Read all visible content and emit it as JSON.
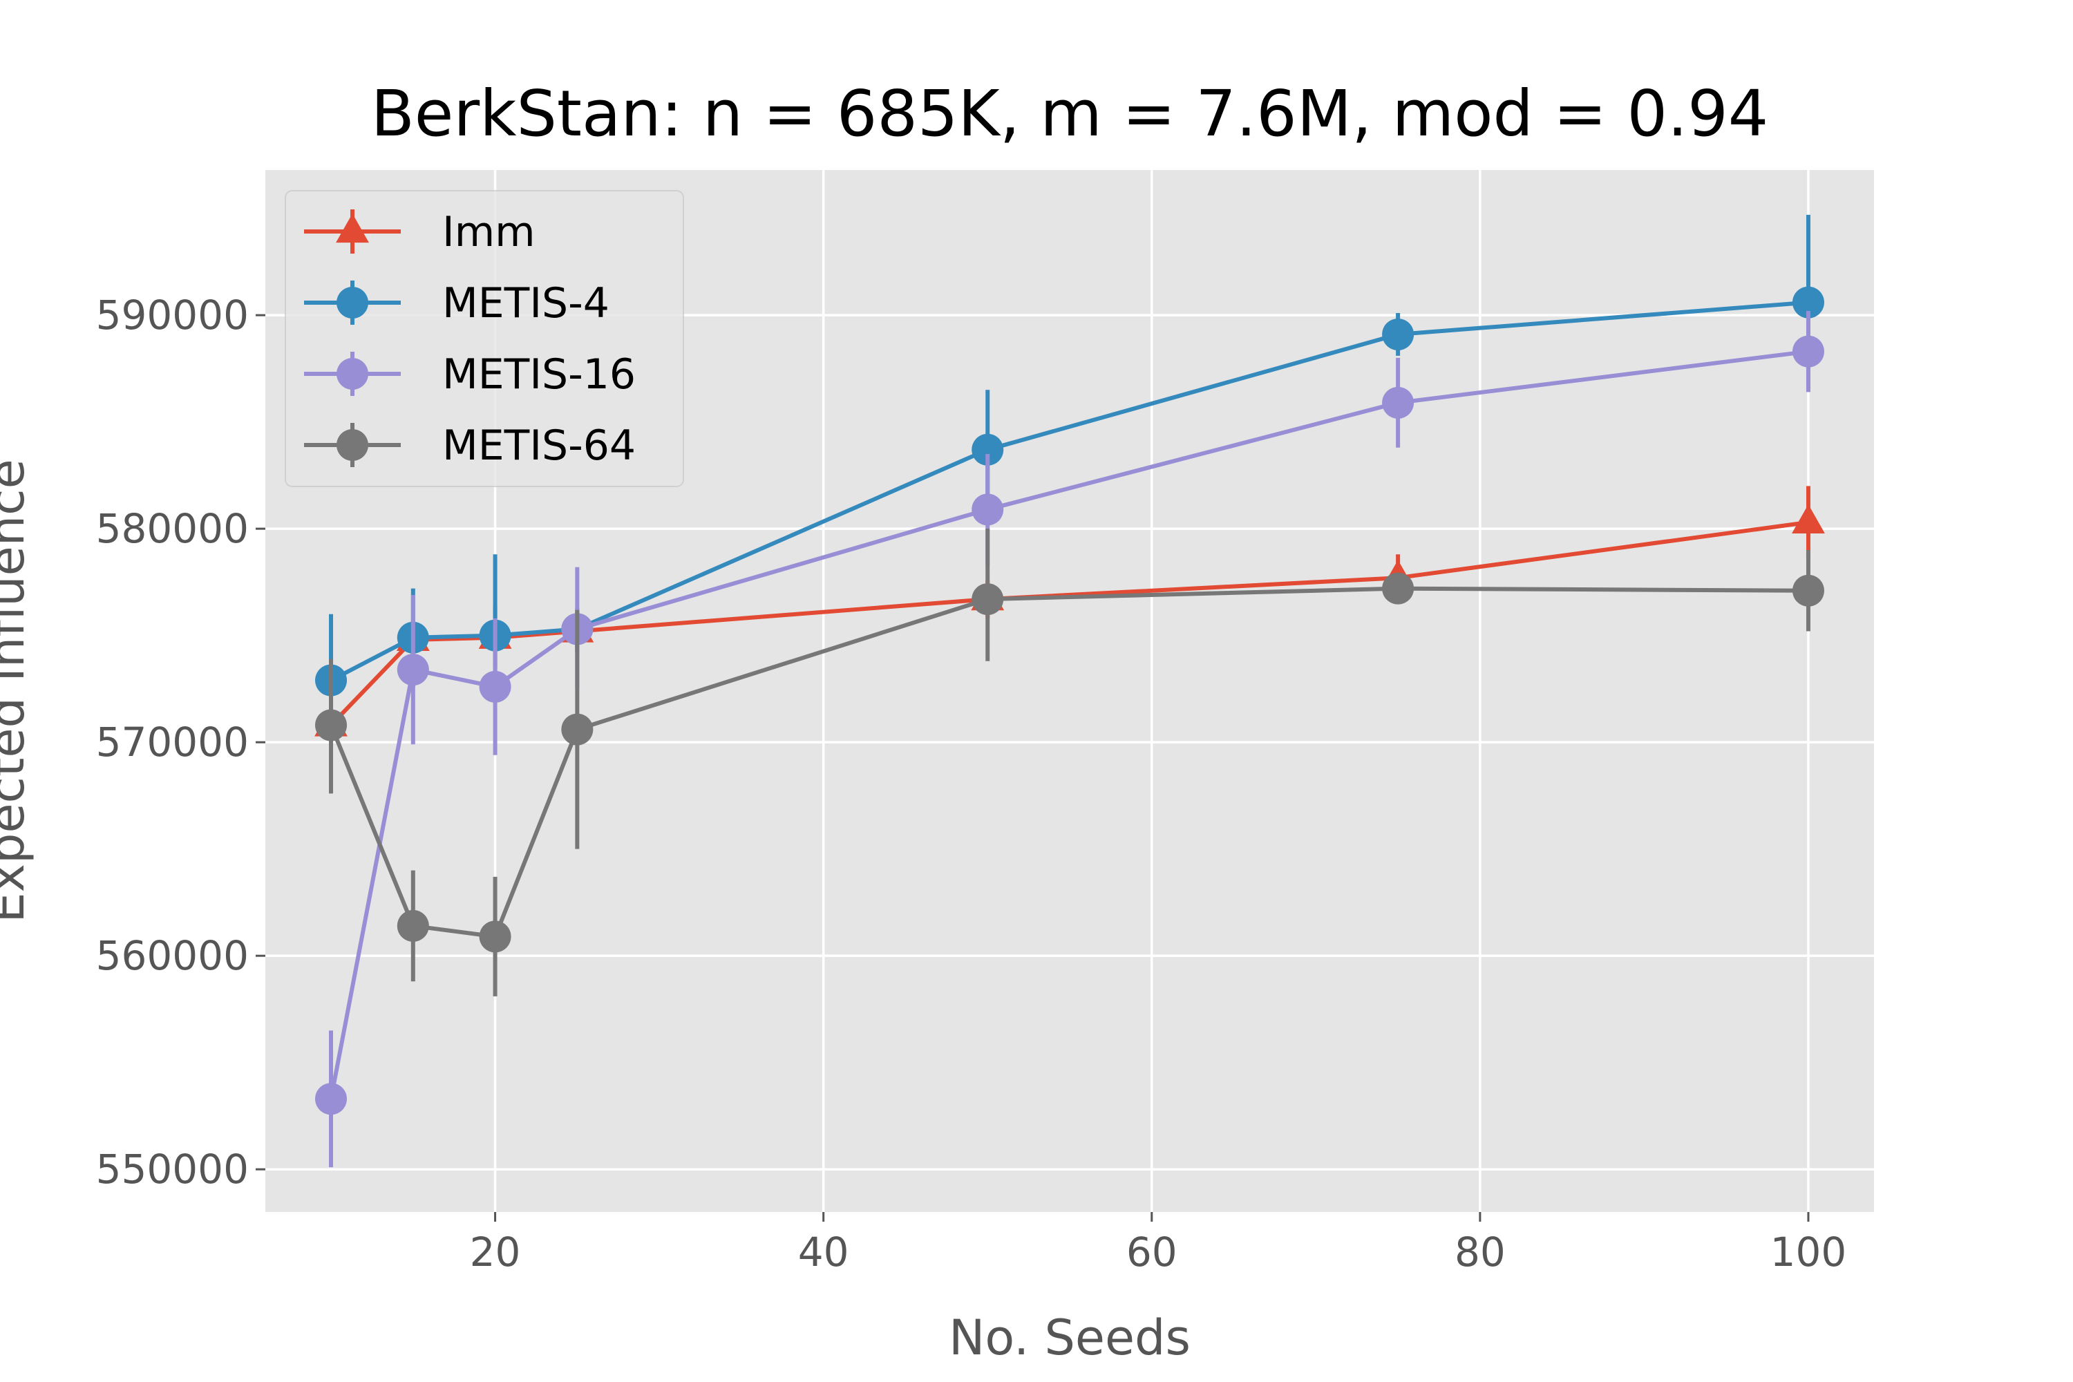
{
  "chart_data": {
    "type": "line",
    "title": "BerkStan: n = 685K, m = 7.6M, mod = 0.94",
    "xlabel": "No. Seeds",
    "ylabel": "Expected Influence",
    "xlim": [
      6,
      104
    ],
    "ylim": [
      548000,
      596800
    ],
    "xticks": [
      20,
      40,
      60,
      80,
      100
    ],
    "xtick_labels": [
      "20",
      "40",
      "60",
      "80",
      "100"
    ],
    "yticks": [
      550000,
      560000,
      570000,
      580000,
      590000
    ],
    "ytick_labels": [
      "550000",
      "560000",
      "570000",
      "580000",
      "590000"
    ],
    "grid": true,
    "legend_position": "upper-left",
    "x": [
      10,
      15,
      20,
      25,
      50,
      75,
      100
    ],
    "series": [
      {
        "name": "Imm",
        "color": "#E24A33",
        "marker": "triangle",
        "values": [
          570800,
          574800,
          574900,
          575200,
          576700,
          577700,
          580300
        ],
        "err_low": [
          570000,
          574000,
          573500,
          574300,
          575800,
          576800,
          578600
        ],
        "err_high": [
          571600,
          575500,
          576400,
          576200,
          577600,
          578800,
          582000
        ]
      },
      {
        "name": "METIS-4",
        "color": "#348ABD",
        "marker": "circle",
        "values": [
          572900,
          574900,
          575000,
          575300,
          583700,
          589100,
          590600
        ],
        "err_low": [
          570200,
          572600,
          572500,
          574200,
          580900,
          588100,
          586500
        ],
        "err_high": [
          576000,
          577200,
          578800,
          576300,
          586500,
          590100,
          594700
        ]
      },
      {
        "name": "METIS-16",
        "color": "#988ED5",
        "marker": "circle",
        "values": [
          553300,
          573400,
          572600,
          575300,
          580900,
          585900,
          588300
        ],
        "err_low": [
          550100,
          569900,
          569400,
          572500,
          578300,
          583800,
          586400
        ],
        "err_high": [
          556500,
          576900,
          575800,
          578200,
          583500,
          588000,
          590200
        ]
      },
      {
        "name": "METIS-64",
        "color": "#777777",
        "marker": "circle",
        "values": [
          570800,
          561400,
          560900,
          570600,
          576700,
          577200,
          577100
        ],
        "err_low": [
          567600,
          558800,
          558100,
          565000,
          573800,
          576700,
          575200
        ],
        "err_high": [
          573900,
          564000,
          563700,
          576200,
          580000,
          577900,
          579000
        ]
      }
    ]
  }
}
